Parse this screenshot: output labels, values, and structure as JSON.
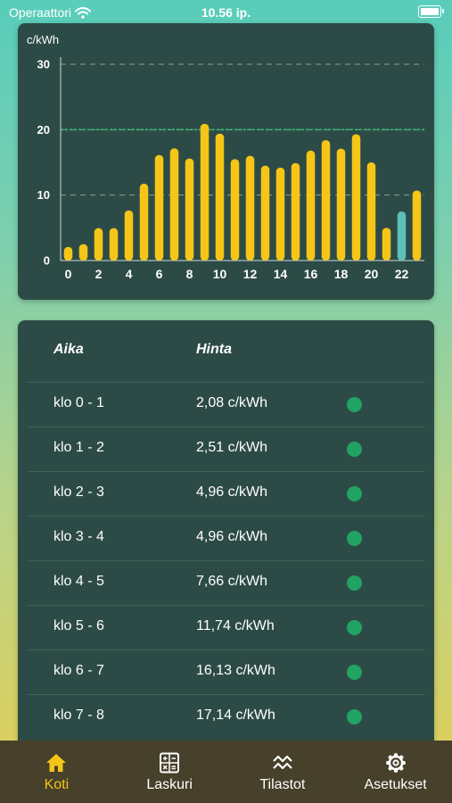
{
  "status_bar": {
    "carrier": "Operaattori",
    "time": "10.56 ip."
  },
  "chart_data": {
    "type": "bar",
    "ylabel": "c/kWh",
    "ylim": [
      0,
      30
    ],
    "y_ticks": [
      "0",
      "10",
      "20",
      "30"
    ],
    "x": [
      0,
      1,
      2,
      3,
      4,
      5,
      6,
      7,
      8,
      9,
      10,
      11,
      12,
      13,
      14,
      15,
      16,
      17,
      18,
      19,
      20,
      21,
      22,
      23
    ],
    "x_tick_labels": [
      "0",
      "2",
      "4",
      "6",
      "8",
      "10",
      "12",
      "14",
      "16",
      "18",
      "20",
      "22"
    ],
    "values": [
      2.08,
      2.51,
      4.96,
      4.96,
      7.66,
      11.74,
      16.13,
      17.14,
      15.6,
      20.9,
      19.4,
      15.5,
      16.0,
      14.5,
      14.2,
      14.9,
      16.8,
      18.4,
      17.1,
      19.3,
      15.0,
      5.0,
      7.5,
      10.7
    ],
    "highlight_index": 22,
    "reference_line": 20,
    "colors": {
      "bar": "#f5c518",
      "highlight": "#5bc0b5",
      "reference": "#2ebd73",
      "grid": "#8aa09c"
    }
  },
  "table": {
    "header_time": "Aika",
    "header_price": "Hinta",
    "rows": [
      {
        "time": "klo 0 - 1",
        "price": "2,08 c/kWh"
      },
      {
        "time": "klo 1 - 2",
        "price": "2,51 c/kWh"
      },
      {
        "time": "klo 2 - 3",
        "price": "4,96 c/kWh"
      },
      {
        "time": "klo 3 - 4",
        "price": "4,96 c/kWh"
      },
      {
        "time": "klo 4 - 5",
        "price": "7,66 c/kWh"
      },
      {
        "time": "klo 5 - 6",
        "price": "11,74 c/kWh"
      },
      {
        "time": "klo 6 - 7",
        "price": "16,13 c/kWh"
      },
      {
        "time": "klo 7 - 8",
        "price": "17,14 c/kWh"
      }
    ],
    "dot_color": "#21a363"
  },
  "tabs": [
    {
      "label": "Koti",
      "icon": "home-icon",
      "active": true
    },
    {
      "label": "Laskuri",
      "icon": "calculator-icon",
      "active": false
    },
    {
      "label": "Tilastot",
      "icon": "stats-icon",
      "active": false
    },
    {
      "label": "Asetukset",
      "icon": "gear-icon",
      "active": false
    }
  ]
}
